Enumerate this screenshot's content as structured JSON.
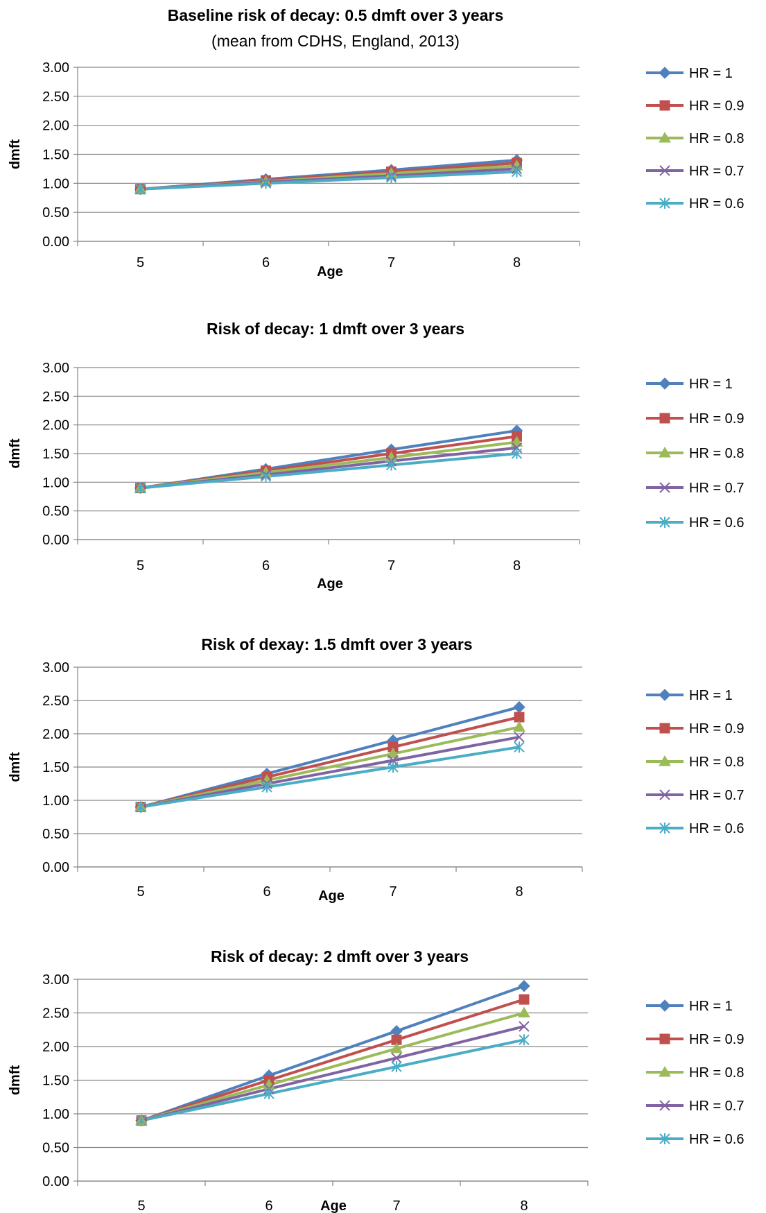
{
  "colors": {
    "HR = 1": "#4F81BD",
    "HR = 0.9": "#C0504D",
    "HR = 0.8": "#9BBB59",
    "HR = 0.7": "#8064A2",
    "HR = 0.6": "#4BACC6",
    "gridline": "#868686",
    "axis": "#868686",
    "text": "#000000"
  },
  "chart_data": [
    {
      "type": "line",
      "title": "Baseline risk of decay: 0.5 dmft over 3 years",
      "subtitle": "(mean from CDHS, England, 2013)",
      "xlabel": "Age",
      "ylabel": "dmft",
      "x": [
        "5",
        "6",
        "7",
        "8"
      ],
      "ylim": [
        0,
        3
      ],
      "yticks": [
        "0.00",
        "0.50",
        "1.00",
        "1.50",
        "2.00",
        "2.50",
        "3.00"
      ],
      "grid": true,
      "legend_position": "right",
      "series": [
        {
          "name": "HR = 1",
          "marker": "diamond",
          "values": [
            0.9,
            1.07,
            1.23,
            1.4
          ]
        },
        {
          "name": "HR = 0.9",
          "marker": "square",
          "values": [
            0.9,
            1.05,
            1.2,
            1.35
          ]
        },
        {
          "name": "HR = 0.8",
          "marker": "triangle",
          "values": [
            0.9,
            1.03,
            1.17,
            1.3
          ]
        },
        {
          "name": "HR = 0.7",
          "marker": "x",
          "values": [
            0.9,
            1.02,
            1.13,
            1.25
          ]
        },
        {
          "name": "HR = 0.6",
          "marker": "star",
          "values": [
            0.9,
            1.0,
            1.1,
            1.2
          ]
        }
      ]
    },
    {
      "type": "line",
      "title": "Risk of decay: 1 dmft over 3 years",
      "xlabel": "Age",
      "ylabel": "dmft",
      "x": [
        "5",
        "6",
        "7",
        "8"
      ],
      "ylim": [
        0,
        3
      ],
      "yticks": [
        "0.00",
        "0.50",
        "1.00",
        "1.50",
        "2.00",
        "2.50",
        "3.00"
      ],
      "grid": true,
      "legend_position": "right",
      "series": [
        {
          "name": "HR = 1",
          "marker": "diamond",
          "values": [
            0.9,
            1.23,
            1.57,
            1.9
          ]
        },
        {
          "name": "HR = 0.9",
          "marker": "square",
          "values": [
            0.9,
            1.2,
            1.5,
            1.8
          ]
        },
        {
          "name": "HR = 0.8",
          "marker": "triangle",
          "values": [
            0.9,
            1.17,
            1.43,
            1.7
          ]
        },
        {
          "name": "HR = 0.7",
          "marker": "x",
          "values": [
            0.9,
            1.13,
            1.37,
            1.6
          ]
        },
        {
          "name": "HR = 0.6",
          "marker": "star",
          "values": [
            0.9,
            1.1,
            1.3,
            1.5
          ]
        }
      ]
    },
    {
      "type": "line",
      "title": "Risk of dexay: 1.5 dmft over 3 years",
      "xlabel": "Age",
      "ylabel": "dmft",
      "x": [
        "5",
        "6",
        "7",
        "8"
      ],
      "ylim": [
        0,
        3
      ],
      "yticks": [
        "0.00",
        "0.50",
        "1.00",
        "1.50",
        "2.00",
        "2.50",
        "3.00"
      ],
      "grid": true,
      "legend_position": "right",
      "series": [
        {
          "name": "HR = 1",
          "marker": "diamond",
          "values": [
            0.9,
            1.4,
            1.9,
            2.4
          ]
        },
        {
          "name": "HR = 0.9",
          "marker": "square",
          "values": [
            0.9,
            1.35,
            1.8,
            2.25
          ]
        },
        {
          "name": "HR = 0.8",
          "marker": "triangle",
          "values": [
            0.9,
            1.3,
            1.7,
            2.1
          ]
        },
        {
          "name": "HR = 0.7",
          "marker": "x",
          "values": [
            0.9,
            1.25,
            1.6,
            1.95
          ]
        },
        {
          "name": "HR = 0.6",
          "marker": "star",
          "values": [
            0.9,
            1.2,
            1.5,
            1.8
          ]
        }
      ]
    },
    {
      "type": "line",
      "title": "Risk of decay: 2 dmft over 3 years",
      "xlabel": "Age",
      "ylabel": "dmft",
      "x": [
        "5",
        "6",
        "7",
        "8"
      ],
      "ylim": [
        0,
        3
      ],
      "yticks": [
        "0.00",
        "0.50",
        "1.00",
        "1.50",
        "2.00",
        "2.50",
        "3.00"
      ],
      "grid": true,
      "legend_position": "right",
      "series": [
        {
          "name": "HR = 1",
          "marker": "diamond",
          "values": [
            0.9,
            1.57,
            2.23,
            2.9
          ]
        },
        {
          "name": "HR = 0.9",
          "marker": "square",
          "values": [
            0.9,
            1.5,
            2.1,
            2.7
          ]
        },
        {
          "name": "HR = 0.8",
          "marker": "triangle",
          "values": [
            0.9,
            1.43,
            1.97,
            2.5
          ]
        },
        {
          "name": "HR = 0.7",
          "marker": "x",
          "values": [
            0.9,
            1.37,
            1.83,
            2.3
          ]
        },
        {
          "name": "HR = 0.6",
          "marker": "star",
          "values": [
            0.9,
            1.3,
            1.7,
            2.1
          ]
        }
      ]
    }
  ]
}
